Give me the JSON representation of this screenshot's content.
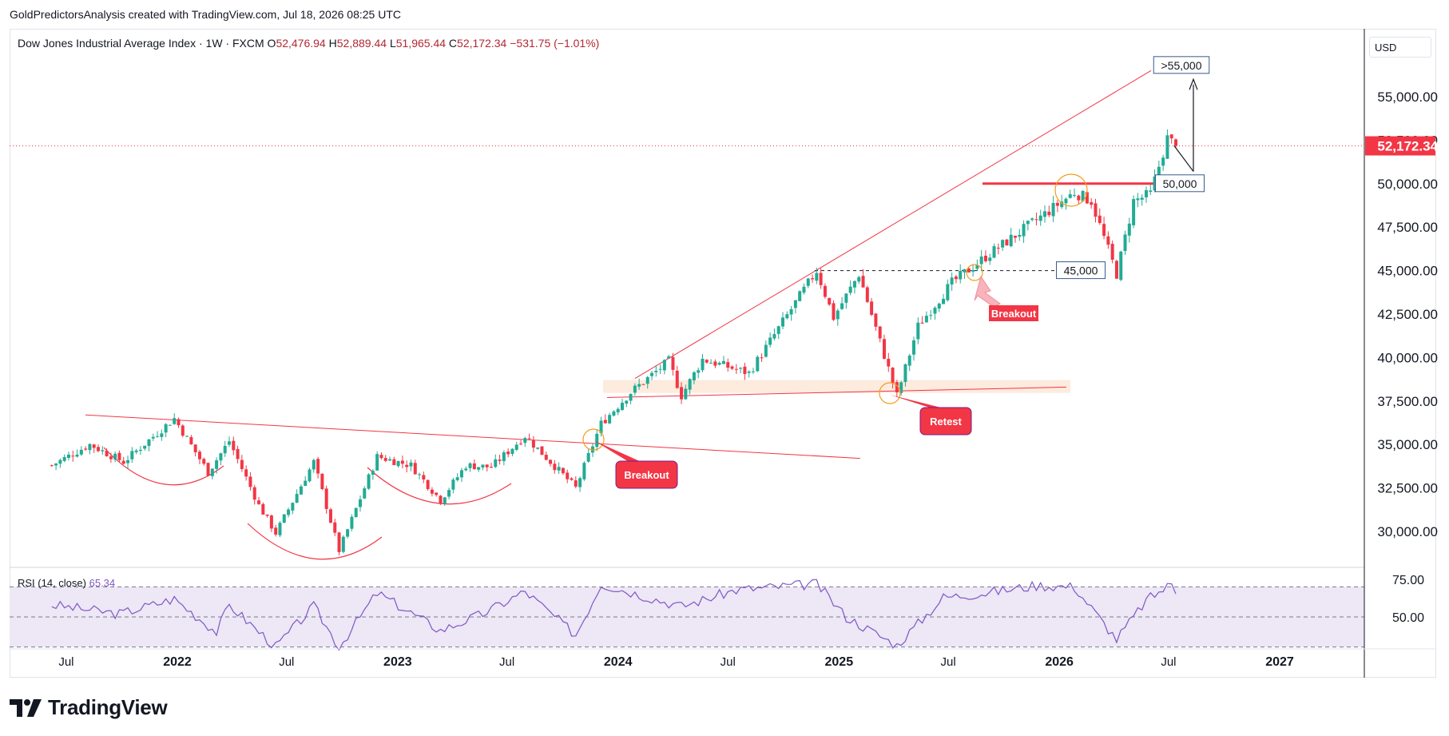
{
  "header": {
    "attribution": "GoldPredictorsAnalysis created with TradingView.com, Jul 18, 2026 08:25 UTC"
  },
  "legend": {
    "symbol": "Dow Jones Industrial Average Index · 1W · FXCM",
    "o_label": "O",
    "o": "52,476.94",
    "h_label": "H",
    "h": "52,889.44",
    "l_label": "L",
    "l": "51,965.44",
    "c_label": "C",
    "c": "52,172.34",
    "change": "−531.75 (−1.01%)"
  },
  "currency": "USD",
  "last_price_label": "52,172.34",
  "rsi": {
    "label": "RSI (14, close)",
    "value": "65.34",
    "levels": [
      "75.00",
      "50.00"
    ]
  },
  "brand": {
    "name": "TradingView"
  },
  "colors": {
    "up": "#22ab94",
    "down": "#f23645",
    "trend": "#f23645",
    "rsi": "#7e57c2",
    "rsi_band": "#ede7f6",
    "callout": "#f23645",
    "zone": "#fde8d8"
  },
  "annotations": {
    "breakout_1": "Breakout",
    "retest": "Retest",
    "breakout_2": "Breakout",
    "level_45k": "45,000",
    "level_50k": "50,000",
    "target": ">55,000"
  },
  "chart_data": {
    "type": "candlestick",
    "title": "Dow Jones Industrial Average Index · 1W · FXCM",
    "y_ticks": [
      "55,000.00",
      "52,500.00",
      "50,000.00",
      "47,500.00",
      "45,000.00",
      "42,500.00",
      "40,000.00",
      "37,500.00",
      "35,000.00",
      "32,500.00",
      "30,000.00"
    ],
    "ylim": [
      28000,
      58000
    ],
    "x_ticks": [
      "Jul",
      "2022",
      "Jul",
      "2023",
      "Jul",
      "2024",
      "Jul",
      "2025",
      "Jul",
      "2026",
      "Jul",
      "2027"
    ],
    "path_points": [
      [
        "2021-06-07",
        33800
      ],
      [
        "2021-08-09",
        35000
      ],
      [
        "2021-10-04",
        34000
      ],
      [
        "2021-12-27",
        36500
      ],
      [
        "2022-02-21",
        33400
      ],
      [
        "2022-03-28",
        35200
      ],
      [
        "2022-05-16",
        31500
      ],
      [
        "2022-06-13",
        29900
      ],
      [
        "2022-08-15",
        34000
      ],
      [
        "2022-09-26",
        28900
      ],
      [
        "2022-11-28",
        34300
      ],
      [
        "2023-01-23",
        33800
      ],
      [
        "2023-03-13",
        31800
      ],
      [
        "2023-04-24",
        33800
      ],
      [
        "2023-06-05",
        33700
      ],
      [
        "2023-07-31",
        35500
      ],
      [
        "2023-10-23",
        32500
      ],
      [
        "2023-12-04",
        36200
      ],
      [
        "2024-01-22",
        38000
      ],
      [
        "2024-03-25",
        39800
      ],
      [
        "2024-04-15",
        37800
      ],
      [
        "2024-05-20",
        39900
      ],
      [
        "2024-08-05",
        39100
      ],
      [
        "2024-11-25",
        45000
      ],
      [
        "2024-12-23",
        42300
      ],
      [
        "2025-02-03",
        44800
      ],
      [
        "2025-04-07",
        37800
      ],
      [
        "2025-05-12",
        41800
      ],
      [
        "2025-07-07",
        44300
      ],
      [
        "2025-09-01",
        45800
      ],
      [
        "2025-11-24",
        47900
      ],
      [
        "2026-01-26",
        49500
      ],
      [
        "2026-02-23",
        49000
      ],
      [
        "2026-04-06",
        44800
      ],
      [
        "2026-05-04",
        49000
      ],
      [
        "2026-06-01",
        49400
      ],
      [
        "2026-06-29",
        52600
      ],
      [
        "2026-07-13",
        52172.34
      ]
    ],
    "last_close": 52172.34,
    "levels": [
      45000,
      50000
    ],
    "target": 55000,
    "rsi_series": {
      "name": "RSI (14, close)",
      "ylim": [
        28,
        80
      ],
      "levels": [
        70,
        50,
        30
      ],
      "points": [
        [
          "2021-06-07",
          58
        ],
        [
          "2021-09-27",
          52
        ],
        [
          "2021-12-27",
          62
        ],
        [
          "2022-03-07",
          40
        ],
        [
          "2022-03-28",
          58
        ],
        [
          "2022-06-13",
          30
        ],
        [
          "2022-08-15",
          57
        ],
        [
          "2022-09-26",
          30
        ],
        [
          "2022-11-28",
          66
        ],
        [
          "2023-03-13",
          41
        ],
        [
          "2023-05-22",
          52
        ],
        [
          "2023-07-31",
          67
        ],
        [
          "2023-10-23",
          38
        ],
        [
          "2023-12-04",
          72
        ],
        [
          "2024-04-15",
          57
        ],
        [
          "2024-07-15",
          68
        ],
        [
          "2024-11-25",
          72
        ],
        [
          "2025-01-13",
          50
        ],
        [
          "2025-04-07",
          31
        ],
        [
          "2025-06-23",
          63
        ],
        [
          "2025-09-01",
          66
        ],
        [
          "2025-11-24",
          71
        ],
        [
          "2026-01-26",
          70
        ],
        [
          "2026-04-06",
          35
        ],
        [
          "2026-05-25",
          61
        ],
        [
          "2026-07-06",
          72
        ],
        [
          "2026-07-13",
          65.34
        ]
      ]
    }
  }
}
